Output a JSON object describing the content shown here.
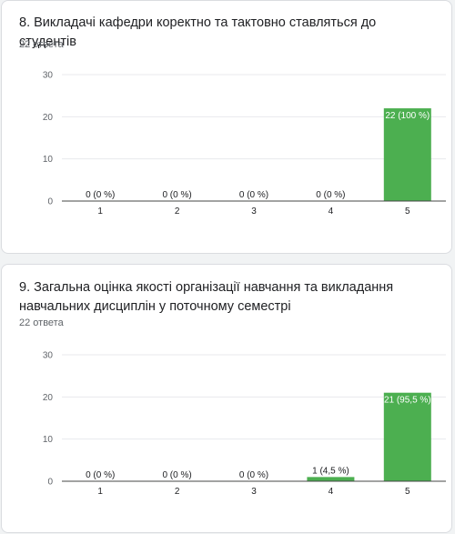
{
  "colors": {
    "bar": "#4caf50",
    "page_background": "#f1f3f4",
    "card_background": "#ffffff"
  },
  "questions": [
    {
      "title": "8. Викладачі кафедри коректно та тактовно ставляться до студентів",
      "responses": "22 ответа"
    },
    {
      "title": "9. Загальна оцінка якості організації навчання та викладання навчальних дисциплін у поточному семестрі",
      "responses": "22 ответа"
    }
  ],
  "chart_data": [
    {
      "type": "bar",
      "categories": [
        "1",
        "2",
        "3",
        "4",
        "5"
      ],
      "values": [
        0,
        0,
        0,
        0,
        22
      ],
      "data_labels": [
        "0 (0 %)",
        "0 (0 %)",
        "0 (0 %)",
        "0 (0 %)",
        "22 (100 %)"
      ],
      "yticks": [
        0,
        10,
        20,
        30
      ],
      "ylim": [
        0,
        30
      ],
      "grid": true
    },
    {
      "type": "bar",
      "categories": [
        "1",
        "2",
        "3",
        "4",
        "5"
      ],
      "values": [
        0,
        0,
        0,
        1,
        21
      ],
      "data_labels": [
        "0 (0 %)",
        "0 (0 %)",
        "0 (0 %)",
        "1 (4,5 %)",
        "21 (95,5 %)"
      ],
      "yticks": [
        0,
        10,
        20,
        30
      ],
      "ylim": [
        0,
        30
      ],
      "grid": true
    }
  ]
}
